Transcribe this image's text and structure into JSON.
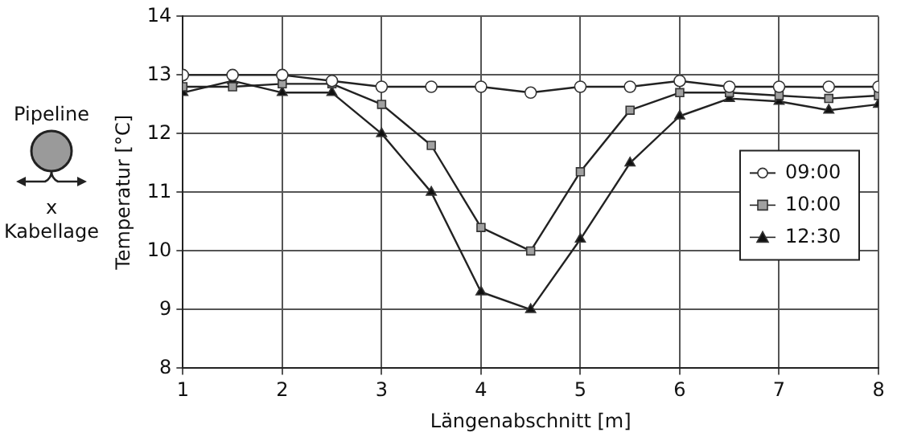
{
  "chart_data": {
    "type": "line",
    "xlabel": "Längenabschnitt [m]",
    "ylabel": "Temperatur [°C]",
    "annotations": [
      "Pipeline",
      "x",
      "Kabellage"
    ],
    "x": [
      1,
      1.5,
      2,
      2.5,
      3,
      3.5,
      4,
      4.5,
      5,
      5.5,
      6,
      6.5,
      7,
      7.5,
      8
    ],
    "series": [
      {
        "name": "09:00",
        "color": "#ffffff",
        "marker": "circle",
        "values": [
          13.0,
          13.0,
          13.0,
          12.9,
          12.8,
          12.8,
          12.8,
          12.7,
          12.8,
          12.8,
          12.9,
          12.8,
          12.8,
          12.8,
          12.8
        ]
      },
      {
        "name": "10:00",
        "color": "#a0a0a0",
        "marker": "square",
        "values": [
          12.8,
          12.8,
          12.85,
          12.85,
          12.5,
          11.8,
          10.4,
          10.0,
          11.35,
          12.4,
          12.7,
          12.7,
          12.65,
          12.6,
          12.65
        ]
      },
      {
        "name": "12:30",
        "color": "#111111",
        "marker": "triangle",
        "values": [
          12.7,
          12.9,
          12.7,
          12.7,
          12.0,
          11.0,
          9.3,
          9.0,
          10.2,
          11.5,
          12.3,
          12.6,
          12.55,
          12.4,
          12.5
        ]
      }
    ],
    "xlim": [
      1,
      8
    ],
    "xticks": [
      1,
      2,
      3,
      4,
      5,
      6,
      7,
      8
    ],
    "ylim": [
      8,
      14
    ],
    "yticks": [
      8,
      9,
      10,
      11,
      12,
      13,
      14
    ],
    "grid": true,
    "legend": "right",
    "line_style": "solid"
  }
}
